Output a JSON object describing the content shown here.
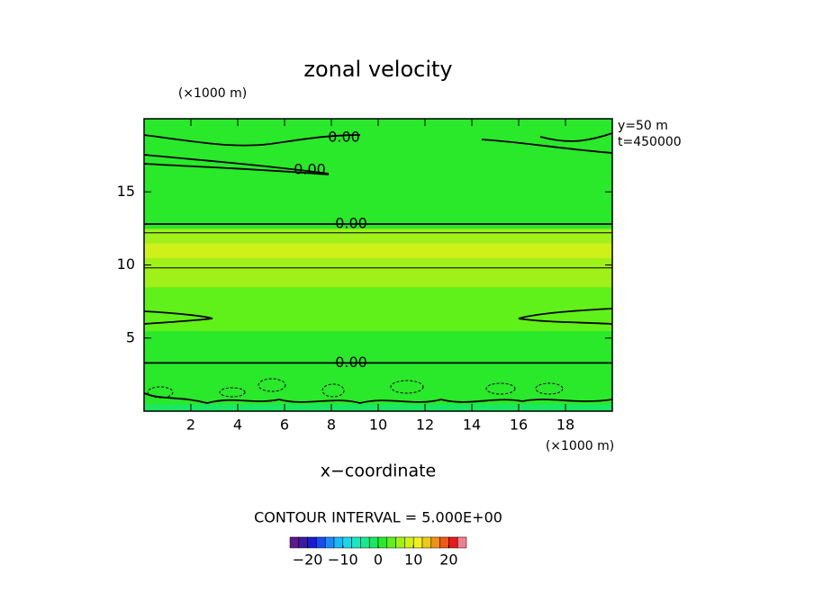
{
  "chart_data": {
    "type": "contour",
    "title": "zonal velocity",
    "x_unit": "(×1000 m)",
    "y_unit": "(×1000 m)",
    "x_label": "x−coordinate",
    "info": [
      "y=50 m",
      "t=450000"
    ],
    "contour_interval": "CONTOUR INTERVAL = 5.000E+00",
    "contour_labels": [
      {
        "value": 0,
        "label": "0.00"
      },
      {
        "value": 0,
        "label": "0.00"
      },
      {
        "value": 0,
        "label": "0.00"
      },
      {
        "value": 0,
        "label": "0.00"
      }
    ],
    "xlim": [
      0,
      20
    ],
    "ylim": [
      0,
      20
    ],
    "xticks": [
      2,
      4,
      6,
      8,
      10,
      12,
      14,
      16,
      18
    ],
    "yticks": [
      5,
      10,
      15
    ],
    "y": [
      0,
      1,
      2,
      3,
      4,
      5,
      6,
      7,
      8,
      9,
      10,
      11,
      12,
      13,
      14,
      15,
      16,
      17,
      18,
      19,
      20
    ],
    "values": [
      -1,
      0,
      1,
      0,
      1,
      2,
      3,
      3,
      4,
      5,
      7,
      9,
      7,
      0,
      2,
      2,
      2,
      1,
      1,
      1,
      1
    ],
    "colorbar_lim": [
      -25,
      25
    ],
    "colorbar_ticks": [
      {
        "value": -20,
        "label": "−20"
      },
      {
        "value": -10,
        "label": "−10"
      },
      0,
      10,
      20
    ],
    "colorbar_colors": [
      "#5a1a8c",
      "#3a1aa0",
      "#1a1ad0",
      "#1a4af0",
      "#1a8af8",
      "#1ab8f8",
      "#1ad8e8",
      "#1ae8c0",
      "#1ae890",
      "#1ae860",
      "#2ae82a",
      "#60f01a",
      "#a0f01a",
      "#d0f01a",
      "#f0f01a",
      "#f0c81a",
      "#f0901a",
      "#f0581a",
      "#e81a1a",
      "#f08090"
    ]
  }
}
